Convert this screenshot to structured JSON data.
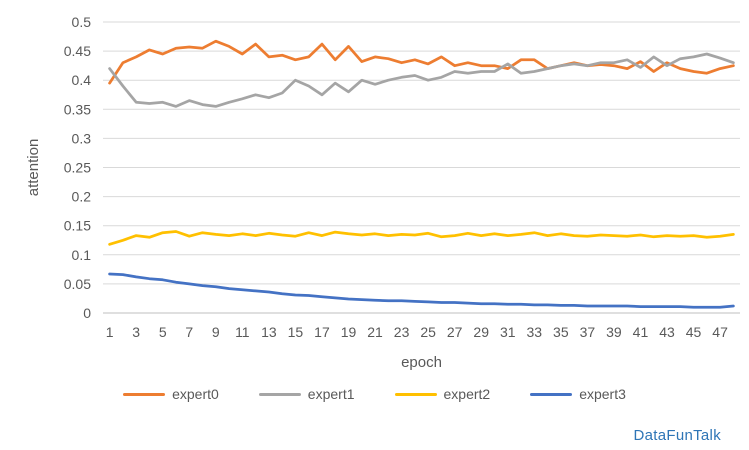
{
  "watermark": {
    "text": "DataFunTalk",
    "color": "#2E75B6"
  },
  "chart_data": {
    "type": "line",
    "xlabel": "epoch",
    "ylabel": "attention",
    "ylim": [
      0,
      0.5
    ],
    "x_range": [
      0.5,
      48.5
    ],
    "grid": true,
    "legend_position": "bottom",
    "grid_color": "#D9D9D9",
    "axis_color": "#BFBFBF",
    "text_color": "#595959",
    "y_ticks": [
      "0",
      "0.05",
      "0.1",
      "0.15",
      "0.2",
      "0.25",
      "0.3",
      "0.35",
      "0.4",
      "0.45",
      "0.5"
    ],
    "x_ticks": [
      1,
      3,
      5,
      7,
      9,
      11,
      13,
      15,
      17,
      19,
      21,
      23,
      25,
      27,
      29,
      31,
      33,
      35,
      37,
      39,
      41,
      43,
      45,
      47
    ],
    "x": [
      1,
      2,
      3,
      4,
      5,
      6,
      7,
      8,
      9,
      10,
      11,
      12,
      13,
      14,
      15,
      16,
      17,
      18,
      19,
      20,
      21,
      22,
      23,
      24,
      25,
      26,
      27,
      28,
      29,
      30,
      31,
      32,
      33,
      34,
      35,
      36,
      37,
      38,
      39,
      40,
      41,
      42,
      43,
      44,
      45,
      46,
      47,
      48
    ],
    "series": [
      {
        "name": "expert0",
        "color": "#ED7D31",
        "values": [
          0.395,
          0.43,
          0.44,
          0.452,
          0.445,
          0.455,
          0.457,
          0.455,
          0.467,
          0.458,
          0.445,
          0.462,
          0.44,
          0.443,
          0.435,
          0.44,
          0.462,
          0.435,
          0.458,
          0.432,
          0.44,
          0.437,
          0.43,
          0.435,
          0.428,
          0.44,
          0.425,
          0.43,
          0.425,
          0.425,
          0.42,
          0.435,
          0.435,
          0.42,
          0.425,
          0.43,
          0.425,
          0.427,
          0.425,
          0.42,
          0.432,
          0.415,
          0.43,
          0.42,
          0.415,
          0.412,
          0.42,
          0.425
        ]
      },
      {
        "name": "expert1",
        "color": "#A5A5A5",
        "values": [
          0.42,
          0.39,
          0.362,
          0.36,
          0.362,
          0.355,
          0.365,
          0.358,
          0.355,
          0.362,
          0.368,
          0.375,
          0.37,
          0.378,
          0.4,
          0.39,
          0.375,
          0.395,
          0.38,
          0.4,
          0.393,
          0.4,
          0.405,
          0.408,
          0.4,
          0.405,
          0.415,
          0.412,
          0.415,
          0.415,
          0.428,
          0.412,
          0.415,
          0.42,
          0.425,
          0.428,
          0.425,
          0.43,
          0.43,
          0.435,
          0.422,
          0.44,
          0.425,
          0.437,
          0.44,
          0.445,
          0.438,
          0.43
        ]
      },
      {
        "name": "expert2",
        "color": "#FFC000",
        "values": [
          0.118,
          0.125,
          0.133,
          0.13,
          0.138,
          0.14,
          0.132,
          0.138,
          0.135,
          0.133,
          0.136,
          0.133,
          0.137,
          0.134,
          0.132,
          0.138,
          0.133,
          0.139,
          0.136,
          0.134,
          0.136,
          0.133,
          0.135,
          0.134,
          0.137,
          0.131,
          0.133,
          0.137,
          0.133,
          0.136,
          0.133,
          0.135,
          0.138,
          0.133,
          0.136,
          0.133,
          0.132,
          0.134,
          0.133,
          0.132,
          0.134,
          0.131,
          0.133,
          0.132,
          0.133,
          0.13,
          0.132,
          0.135
        ]
      },
      {
        "name": "expert3",
        "color": "#4472C4",
        "values": [
          0.067,
          0.066,
          0.062,
          0.059,
          0.057,
          0.053,
          0.05,
          0.047,
          0.045,
          0.042,
          0.04,
          0.038,
          0.036,
          0.033,
          0.031,
          0.03,
          0.028,
          0.026,
          0.024,
          0.023,
          0.022,
          0.021,
          0.021,
          0.02,
          0.019,
          0.018,
          0.018,
          0.017,
          0.016,
          0.016,
          0.015,
          0.015,
          0.014,
          0.014,
          0.013,
          0.013,
          0.012,
          0.012,
          0.012,
          0.012,
          0.011,
          0.011,
          0.011,
          0.011,
          0.01,
          0.01,
          0.01,
          0.012
        ]
      }
    ]
  }
}
